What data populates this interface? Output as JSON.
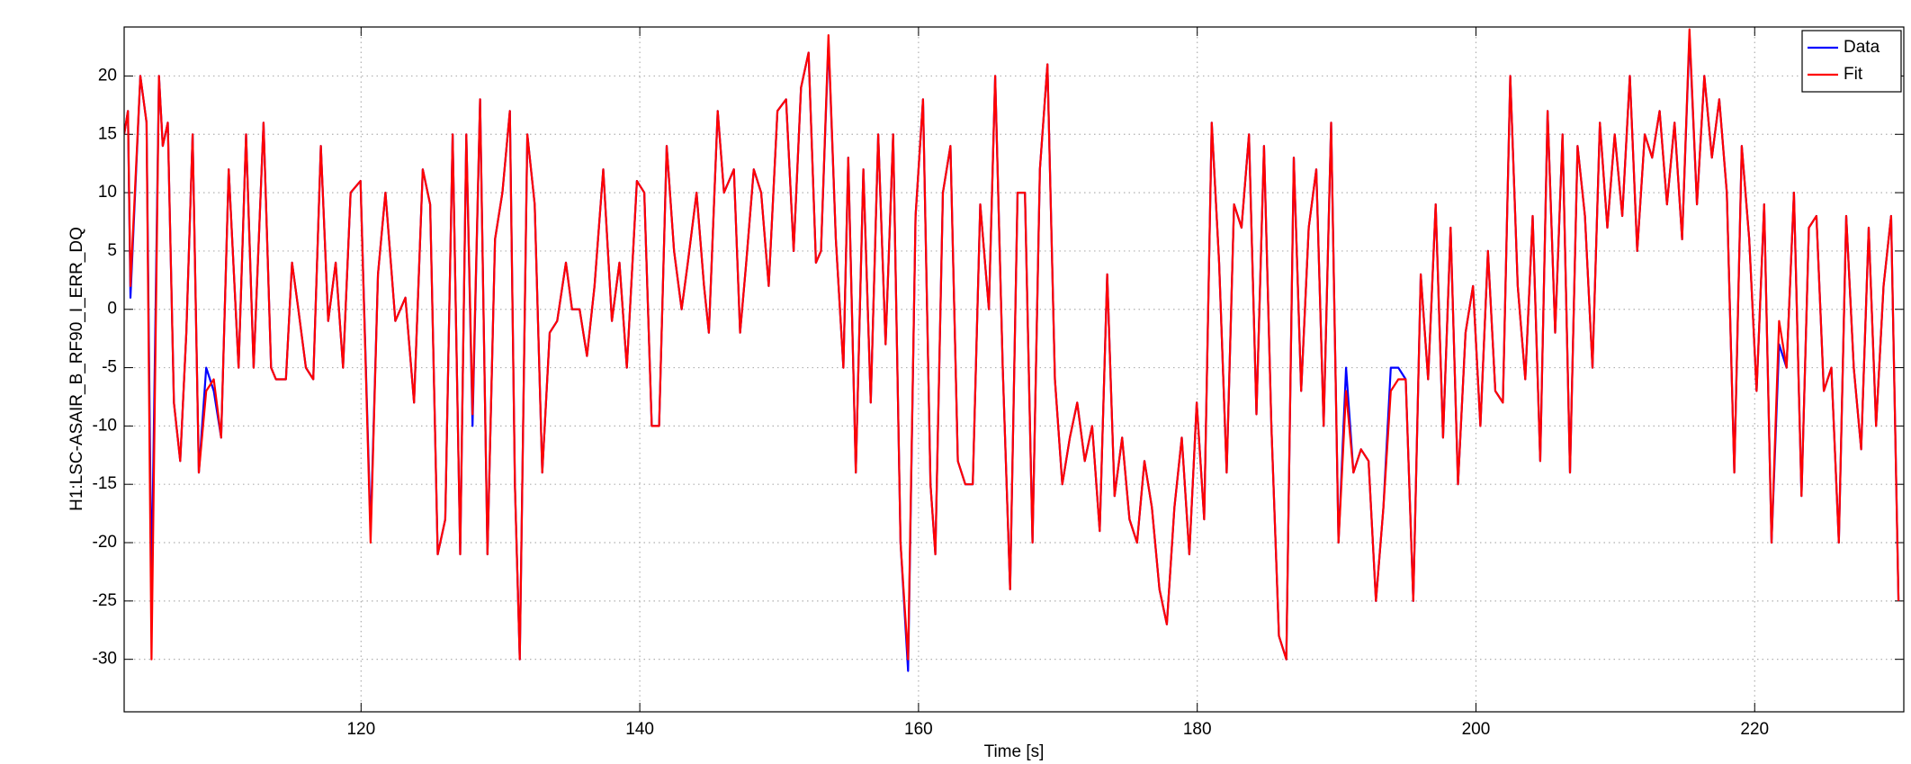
{
  "chart_data": {
    "type": "line",
    "xlabel": "Time [s]",
    "ylabel": "H1:LSC-ASAIR_B_RF90_I_ERR_DQ",
    "x": [
      103.0,
      103.27,
      103.45,
      104.16,
      104.61,
      104.96,
      105.5,
      105.77,
      106.13,
      106.57,
      107.02,
      107.46,
      107.91,
      108.36,
      108.89,
      109.43,
      109.96,
      110.5,
      111.21,
      111.75,
      112.29,
      113.0,
      113.54,
      113.89,
      114.61,
      115.05,
      115.5,
      116.04,
      116.57,
      117.11,
      117.64,
      118.18,
      118.71,
      119.25,
      119.96,
      120.68,
      121.21,
      121.75,
      122.46,
      123.18,
      123.8,
      124.43,
      124.96,
      125.5,
      126.04,
      126.57,
      127.11,
      127.55,
      128.0,
      128.54,
      129.07,
      129.61,
      130.14,
      130.68,
      131.04,
      131.39,
      131.93,
      132.46,
      133.0,
      133.54,
      134.07,
      134.7,
      135.14,
      135.68,
      136.21,
      136.75,
      137.38,
      138.0,
      138.54,
      139.07,
      139.79,
      140.32,
      140.86,
      141.39,
      141.93,
      142.46,
      143.0,
      143.45,
      144.07,
      144.61,
      144.96,
      145.59,
      146.04,
      146.75,
      147.2,
      147.64,
      148.18,
      148.71,
      149.25,
      149.88,
      150.5,
      151.04,
      151.57,
      152.11,
      152.64,
      153.0,
      153.54,
      154.07,
      154.61,
      154.96,
      155.5,
      156.04,
      156.57,
      157.11,
      157.64,
      158.18,
      158.71,
      159.25,
      159.79,
      160.32,
      160.86,
      161.21,
      161.75,
      162.29,
      162.82,
      163.36,
      163.89,
      164.43,
      165.05,
      165.5,
      166.04,
      166.57,
      167.11,
      167.64,
      168.18,
      168.71,
      169.25,
      169.79,
      170.32,
      170.86,
      171.39,
      171.93,
      172.46,
      173.0,
      173.54,
      174.07,
      174.61,
      175.14,
      175.68,
      176.21,
      176.75,
      177.29,
      177.82,
      178.36,
      178.89,
      179.43,
      179.96,
      180.5,
      181.04,
      181.57,
      182.11,
      182.64,
      183.18,
      183.71,
      184.25,
      184.79,
      185.32,
      185.86,
      186.39,
      186.93,
      187.46,
      188.0,
      188.54,
      189.07,
      189.61,
      190.14,
      190.68,
      191.21,
      191.75,
      192.29,
      192.82,
      193.36,
      193.89,
      194.43,
      194.96,
      195.5,
      196.04,
      196.57,
      197.11,
      197.64,
      198.18,
      198.71,
      199.25,
      199.79,
      200.32,
      200.86,
      201.39,
      201.93,
      202.46,
      203.0,
      203.54,
      204.07,
      204.61,
      205.14,
      205.68,
      206.21,
      206.75,
      207.29,
      207.82,
      208.36,
      208.89,
      209.43,
      209.96,
      210.5,
      211.04,
      211.57,
      212.11,
      212.64,
      213.18,
      213.71,
      214.25,
      214.79,
      215.32,
      215.86,
      216.39,
      216.93,
      217.46,
      218.0,
      218.54,
      219.07,
      219.61,
      220.14,
      220.68,
      221.21,
      221.75,
      222.29,
      222.82,
      223.36,
      223.89,
      224.43,
      224.96,
      225.5,
      226.04,
      226.57,
      227.11,
      227.64,
      228.18,
      228.71,
      229.25,
      229.79,
      230.32
    ],
    "series": [
      {
        "name": "Data",
        "color": "#0000ff",
        "values": [
          15,
          17,
          1,
          20,
          16,
          -24,
          20,
          14,
          16,
          -8,
          -13,
          -2,
          15,
          -14,
          -5,
          -7,
          -11,
          12,
          -5,
          15,
          -5,
          16,
          -5,
          -6,
          -6,
          4,
          0,
          -5,
          -6,
          14,
          -1,
          4,
          -5,
          10,
          11,
          -19,
          3,
          10,
          -1,
          1,
          -8,
          12,
          9,
          -21,
          -18,
          15,
          -21,
          15,
          -10,
          18,
          -21,
          6,
          10,
          17,
          -15,
          -30,
          15,
          9,
          -14,
          -2,
          -1,
          4,
          0,
          0,
          -4,
          2,
          12,
          -1,
          4,
          -5,
          11,
          10,
          -10,
          -10,
          14,
          5,
          0,
          4,
          10,
          2,
          -2,
          17,
          10,
          12,
          -2,
          4,
          12,
          10,
          2,
          17,
          18,
          5,
          19,
          22,
          4,
          5,
          23,
          6,
          -5,
          13,
          -14,
          12,
          -8,
          15,
          -3,
          15,
          -20,
          -31,
          8,
          18,
          -15,
          -21,
          10,
          14,
          -13,
          -15,
          -15,
          9,
          0,
          20,
          -5,
          -24,
          10,
          10,
          -20,
          12,
          21,
          -6,
          -15,
          -11,
          -8,
          -13,
          -10,
          -19,
          3,
          -16,
          -11,
          -18,
          -20,
          -13,
          -17,
          -24,
          -27,
          -17,
          -11,
          -21,
          -8,
          -18,
          16,
          4,
          -14,
          9,
          7,
          15,
          -9,
          14,
          -10,
          -28,
          -30,
          13,
          -7,
          7,
          12,
          -10,
          16,
          -20,
          -5,
          -14,
          -12,
          -13,
          -25,
          -17,
          -5,
          -5,
          -6,
          -25,
          3,
          -6,
          9,
          -11,
          7,
          -15,
          -2,
          2,
          -10,
          5,
          -7,
          -8,
          20,
          2,
          -6,
          8,
          -13,
          17,
          -2,
          15,
          -14,
          14,
          8,
          -5,
          16,
          7,
          15,
          8,
          20,
          5,
          15,
          13,
          17,
          9,
          16,
          6,
          23.5,
          9,
          20,
          13,
          18,
          10,
          -14,
          14,
          6,
          -7,
          9,
          -20,
          -3,
          -5,
          10,
          -16,
          7,
          8,
          -7,
          -5,
          -20,
          8,
          -5,
          -12,
          7,
          -10,
          2,
          8,
          -25
        ]
      },
      {
        "name": "Fit",
        "color": "#ff0000",
        "values": [
          15,
          17,
          2,
          20,
          16,
          -30,
          20,
          14,
          16,
          -8,
          -13,
          -2,
          15,
          -14,
          -7,
          -6,
          -11,
          12,
          -5,
          15,
          -5,
          16,
          -5,
          -6,
          -6,
          4,
          0,
          -5,
          -6,
          14,
          -1,
          4,
          -5,
          10,
          11,
          -20,
          3,
          10,
          -1,
          1,
          -8,
          12,
          9,
          -21,
          -18,
          15,
          -21,
          15,
          -9,
          18,
          -21,
          6,
          10,
          17,
          -15,
          -30,
          15,
          9,
          -14,
          -2,
          -1,
          4,
          0,
          0,
          -4,
          2,
          12,
          -1,
          4,
          -5,
          11,
          10,
          -10,
          -10,
          14,
          5,
          0,
          4,
          10,
          2,
          -2,
          17,
          10,
          12,
          -2,
          4,
          12,
          10,
          2,
          17,
          18,
          5,
          19,
          22,
          4,
          5,
          23.5,
          6,
          -5,
          13,
          -14,
          12,
          -8,
          15,
          -3,
          15,
          -20,
          -30,
          8,
          18,
          -15,
          -21,
          10,
          14,
          -13,
          -15,
          -15,
          9,
          0,
          20,
          -5,
          -24,
          10,
          10,
          -20,
          12,
          21,
          -6,
          -15,
          -11,
          -8,
          -13,
          -10,
          -19,
          3,
          -16,
          -11,
          -18,
          -20,
          -13,
          -17,
          -24,
          -27,
          -17,
          -11,
          -21,
          -8,
          -18,
          16,
          4,
          -14,
          9,
          7,
          15,
          -9,
          14,
          -10,
          -28,
          -30,
          13,
          -7,
          7,
          12,
          -10,
          16,
          -20,
          -7,
          -14,
          -12,
          -13,
          -25,
          -17,
          -7,
          -6,
          -6,
          -25,
          3,
          -6,
          9,
          -11,
          7,
          -15,
          -2,
          2,
          -10,
          5,
          -7,
          -8,
          20,
          2,
          -6,
          8,
          -13,
          17,
          -2,
          15,
          -14,
          14,
          8,
          -5,
          16,
          7,
          15,
          8,
          20,
          5,
          15,
          13,
          17,
          9,
          16,
          6,
          24,
          9,
          20,
          13,
          18,
          10,
          -14,
          14,
          6,
          -7,
          9,
          -20,
          -1,
          -5,
          10,
          -16,
          7,
          8,
          -7,
          -5,
          -20,
          8,
          -5,
          -12,
          7,
          -10,
          2,
          8,
          -25
        ]
      }
    ],
    "xlim": [
      103,
      230.7
    ],
    "ylim": [
      -34.5,
      24.2
    ],
    "xticks": [
      120,
      140,
      160,
      180,
      200,
      220
    ],
    "yticks": [
      -30,
      -25,
      -20,
      -15,
      -10,
      -5,
      0,
      5,
      10,
      15,
      20
    ],
    "grid": true,
    "legend": "northeast"
  }
}
